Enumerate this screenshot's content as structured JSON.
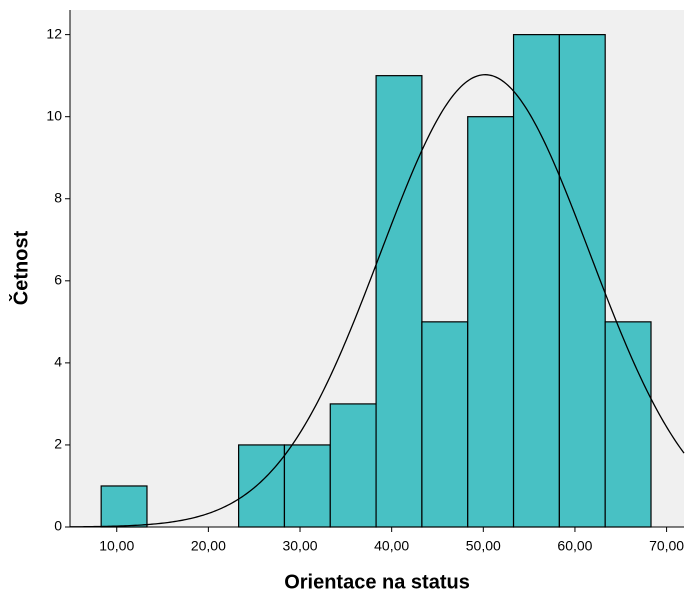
{
  "chart_data": {
    "type": "histogram",
    "xlabel": "Orientace na status",
    "ylabel": "Četnost",
    "bins": [
      8.3,
      13.3,
      18.3,
      23.3,
      28.3,
      33.3,
      38.3,
      43.3,
      48.3,
      53.3,
      58.3,
      63.3,
      68.3
    ],
    "counts": [
      1,
      0,
      0,
      2,
      2,
      3,
      11,
      5,
      10,
      12,
      12,
      5
    ],
    "color": "#48c1c4",
    "normal_curve": {
      "mean": 50.2,
      "std": 11.4
    },
    "xlim": [
      4.9,
      71.9
    ],
    "ylim": [
      0,
      12.6
    ],
    "xticks": [
      {
        "value": 10,
        "label": "10,00"
      },
      {
        "value": 20,
        "label": "20,00"
      },
      {
        "value": 30,
        "label": "30,00"
      },
      {
        "value": 40,
        "label": "40,00"
      },
      {
        "value": 50,
        "label": "50,00"
      },
      {
        "value": 60,
        "label": "60,00"
      },
      {
        "value": 70,
        "label": "70,00"
      }
    ],
    "yticks": [
      0,
      2,
      4,
      6,
      8,
      10,
      12
    ]
  }
}
